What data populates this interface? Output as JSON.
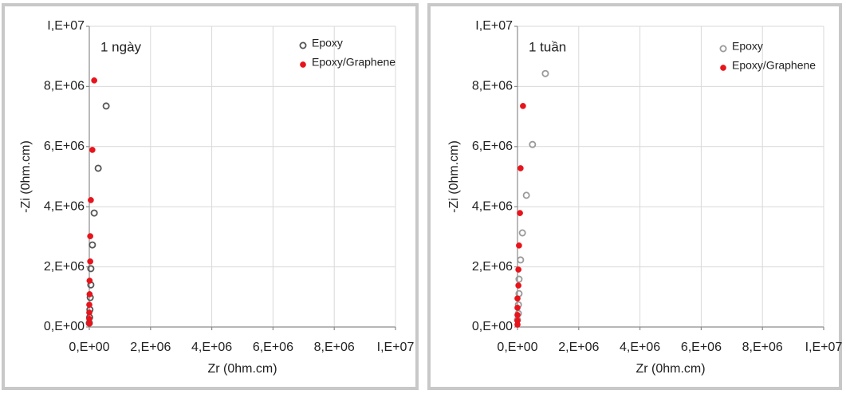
{
  "chart_data": [
    {
      "type": "scatter",
      "annotation": "1 ngày",
      "xlabel": "Zr (0hm.cm)",
      "ylabel": "-Zi (0hm.cm)",
      "xlim": [
        0,
        10000000
      ],
      "ylim": [
        0,
        10000000
      ],
      "xticks": [
        {
          "value": 0,
          "label": "0,E+00"
        },
        {
          "value": 2000000,
          "label": "2,E+06"
        },
        {
          "value": 4000000,
          "label": "4,E+06"
        },
        {
          "value": 6000000,
          "label": "6,E+06"
        },
        {
          "value": 8000000,
          "label": "8,E+06"
        },
        {
          "value": 10000000,
          "label": "I,E+07"
        }
      ],
      "yticks": [
        {
          "value": 0,
          "label": "0,E+00"
        },
        {
          "value": 2000000,
          "label": "2,E+06"
        },
        {
          "value": 4000000,
          "label": "4,E+06"
        },
        {
          "value": 6000000,
          "label": "6,E+06"
        },
        {
          "value": 8000000,
          "label": "8,E+06"
        },
        {
          "value": 10000000,
          "label": "I,E+07"
        }
      ],
      "grid": true,
      "series": [
        {
          "name": "Epoxy",
          "color": "#555555",
          "marker": "open",
          "x": [
            550000,
            290000,
            160000,
            100000,
            50000,
            50000,
            30000,
            20000,
            10000,
            0
          ],
          "values": [
            7350000,
            5280000,
            3790000,
            2730000,
            1940000,
            1400000,
            980000,
            580000,
            320000,
            130000
          ]
        },
        {
          "name": "Epoxy/Graphene",
          "color": "#e8141c",
          "marker": "filled",
          "x": [
            160000,
            100000,
            50000,
            30000,
            30000,
            10000,
            10000,
            0,
            0,
            0,
            0
          ],
          "values": [
            8200000,
            5890000,
            4220000,
            3020000,
            2180000,
            1540000,
            1090000,
            740000,
            480000,
            270000,
            110000
          ]
        }
      ]
    },
    {
      "type": "scatter",
      "annotation": "1 tuần",
      "xlabel": "Zr (0hm.cm)",
      "ylabel": "-Zi (0hm.cm)",
      "xlim": [
        0,
        10000000
      ],
      "ylim": [
        0,
        10000000
      ],
      "xticks": [
        {
          "value": 0,
          "label": "0,E+00"
        },
        {
          "value": 2000000,
          "label": "2,E+06"
        },
        {
          "value": 4000000,
          "label": "4,E+06"
        },
        {
          "value": 6000000,
          "label": "6,E+06"
        },
        {
          "value": 8000000,
          "label": "8,E+06"
        },
        {
          "value": 10000000,
          "label": "I,E+07"
        }
      ],
      "yticks": [
        {
          "value": 0,
          "label": "0,E+00"
        },
        {
          "value": 2000000,
          "label": "2,E+06"
        },
        {
          "value": 4000000,
          "label": "4,E+06"
        },
        {
          "value": 6000000,
          "label": "6,E+06"
        },
        {
          "value": 8000000,
          "label": "8,E+06"
        },
        {
          "value": 10000000,
          "label": "I,E+07"
        }
      ],
      "grid": true,
      "series": [
        {
          "name": "Epoxy",
          "color": "#9a9a9a",
          "marker": "open",
          "x": [
            910000,
            490000,
            290000,
            160000,
            100000,
            50000,
            50000,
            30000,
            30000,
            0
          ],
          "values": [
            8430000,
            6070000,
            4380000,
            3130000,
            2230000,
            1590000,
            1110000,
            740000,
            450000,
            240000
          ]
        },
        {
          "name": "Epoxy/Graphene",
          "color": "#e8141c",
          "marker": "filled",
          "x": [
            180000,
            100000,
            80000,
            50000,
            30000,
            30000,
            0,
            0,
            0,
            0,
            0
          ],
          "values": [
            7350000,
            5280000,
            3790000,
            2710000,
            1910000,
            1380000,
            950000,
            640000,
            400000,
            210000,
            80000
          ]
        }
      ]
    }
  ]
}
